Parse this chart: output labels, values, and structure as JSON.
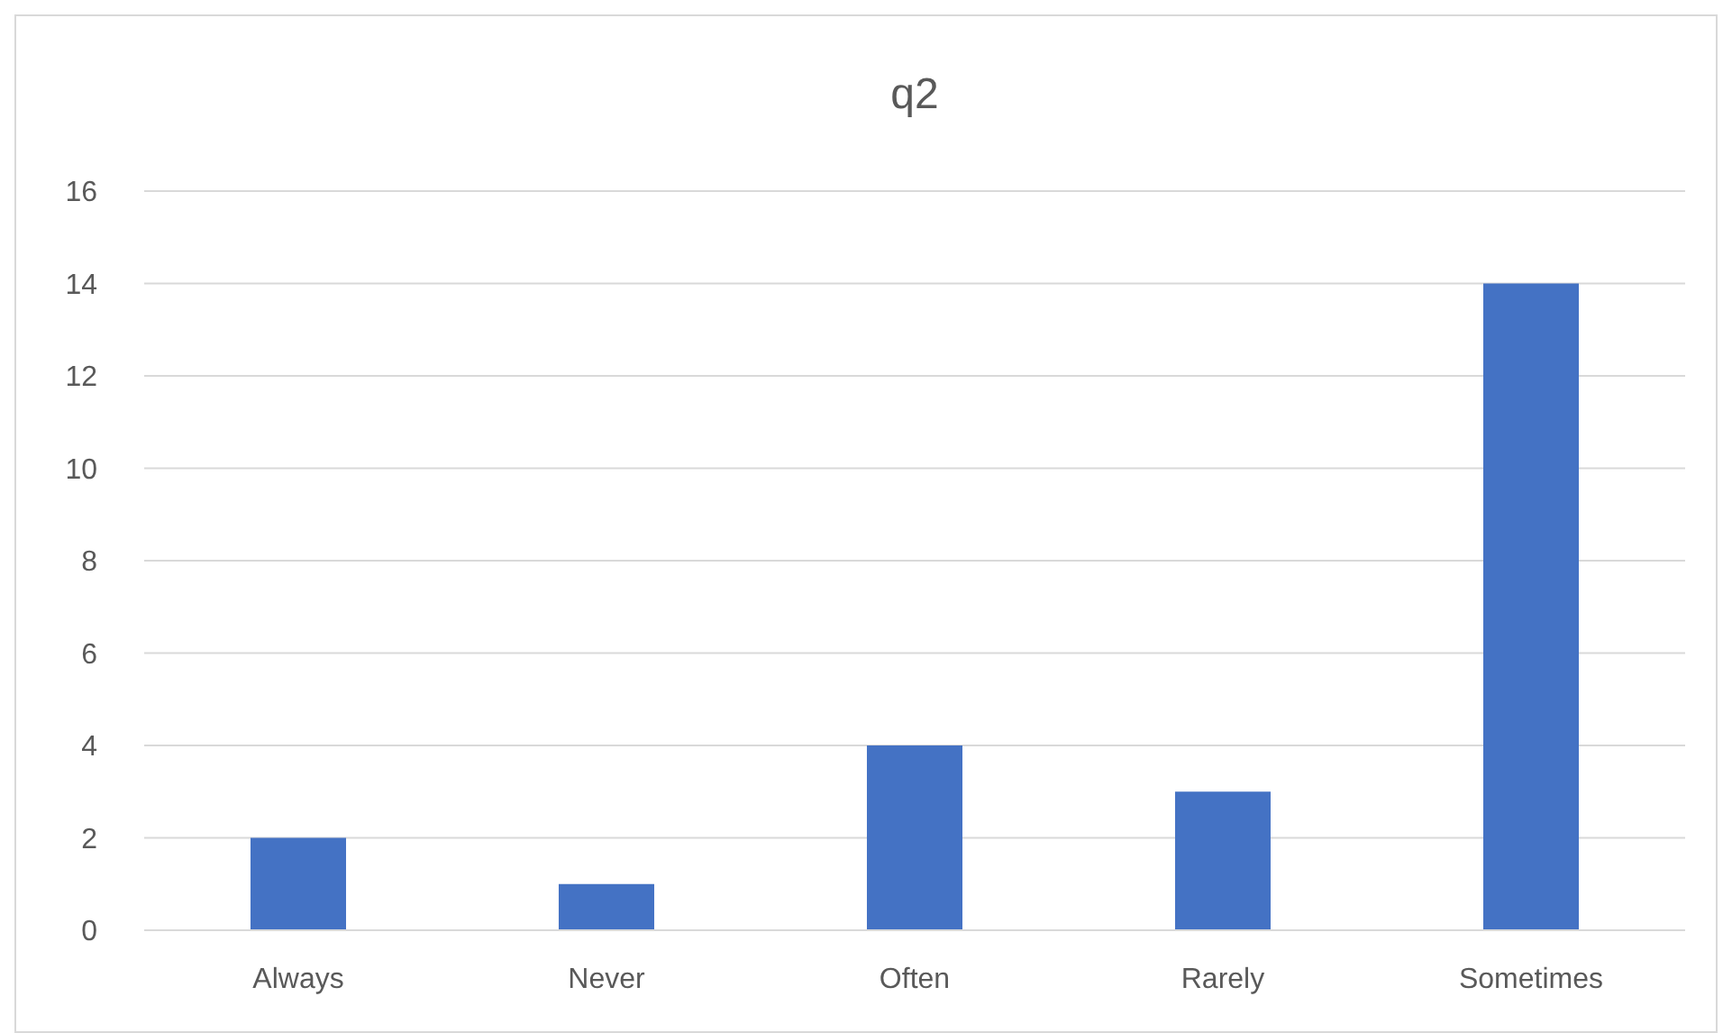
{
  "chart_data": {
    "type": "bar",
    "title": "q2",
    "categories": [
      "Always",
      "Never",
      "Often",
      "Rarely",
      "Sometimes"
    ],
    "values": [
      2,
      1,
      4,
      3,
      14
    ],
    "color": "#4472c4",
    "ylim": [
      0,
      16
    ],
    "yticks": [
      0,
      2,
      4,
      6,
      8,
      10,
      12,
      14,
      16
    ],
    "grid": "y"
  }
}
